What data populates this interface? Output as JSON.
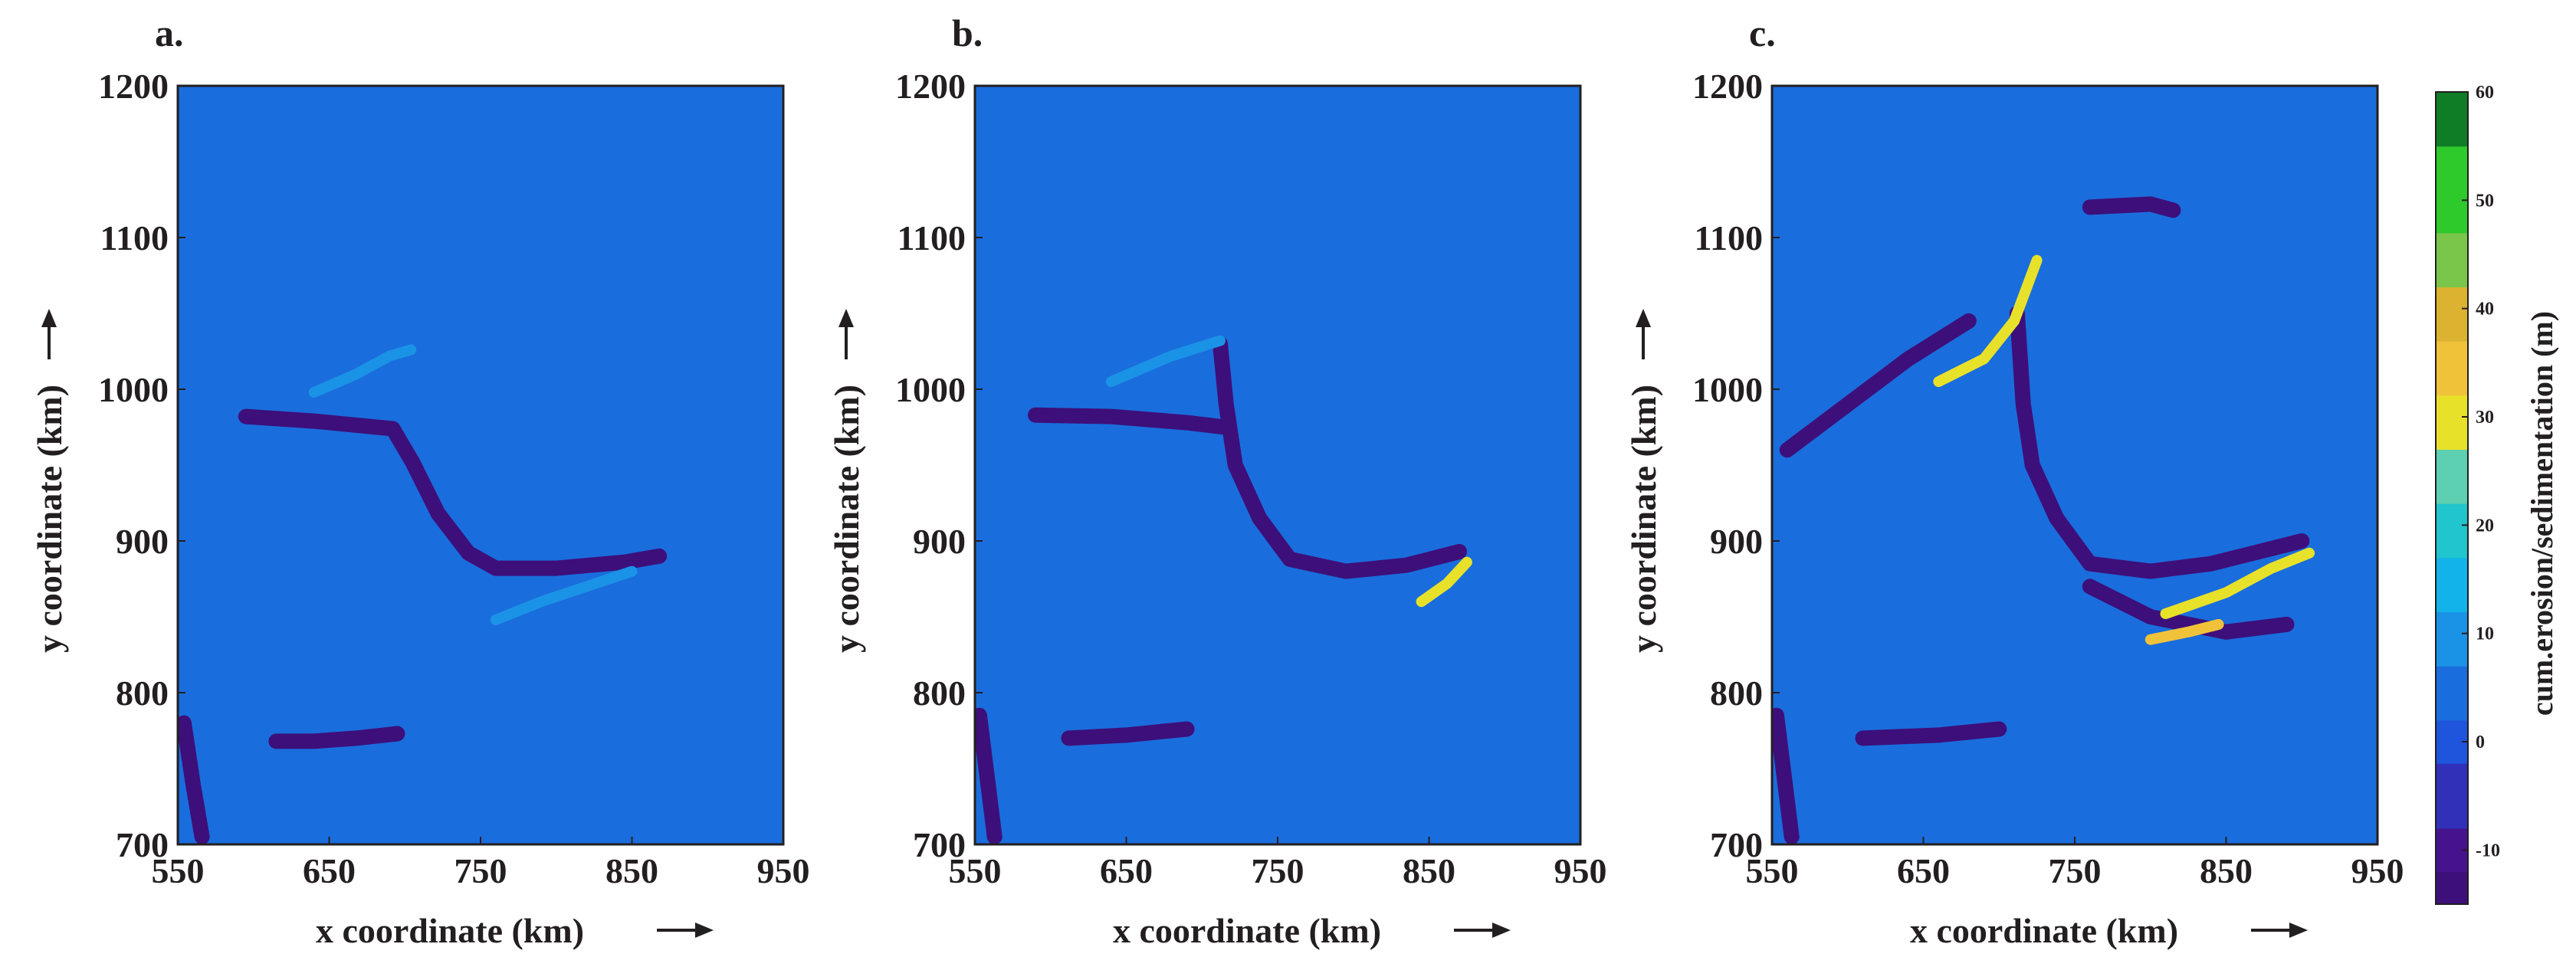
{
  "chart_data": [
    {
      "type": "heatmap",
      "panel_label": "a.",
      "xlabel": "x coordinate (km)",
      "ylabel": "y coordinate (km)",
      "xlim": [
        550,
        950
      ],
      "ylim": [
        700,
        1200
      ],
      "xticks": [
        "550",
        "650",
        "750",
        "850",
        "950"
      ],
      "yticks": [
        "700",
        "800",
        "900",
        "1000",
        "1100",
        "1200"
      ],
      "features": [
        {
          "kind": "erosion-channel",
          "value": -13,
          "points": [
            [
              595,
              982
            ],
            [
              640,
              979
            ],
            [
              692,
              974
            ],
            [
              705,
              952
            ],
            [
              722,
              918
            ],
            [
              742,
              892
            ],
            [
              760,
              882
            ],
            [
              800,
              882
            ],
            [
              845,
              886
            ],
            [
              868,
              890
            ]
          ]
        },
        {
          "kind": "erosion-channel",
          "value": -13,
          "points": [
            [
              615,
              768
            ],
            [
              640,
              768
            ],
            [
              668,
              770
            ],
            [
              695,
              773
            ]
          ]
        },
        {
          "kind": "erosion-channel",
          "value": -13,
          "points": [
            [
              554,
              780
            ],
            [
              560,
              740
            ],
            [
              566,
              705
            ]
          ]
        },
        {
          "kind": "deposition-bar",
          "value": 12,
          "points": [
            [
              640,
              998
            ],
            [
              668,
              1010
            ],
            [
              690,
              1022
            ],
            [
              704,
              1026
            ]
          ]
        },
        {
          "kind": "deposition-bar",
          "value": 8,
          "points": [
            [
              760,
              848
            ],
            [
              790,
              860
            ],
            [
              820,
              870
            ],
            [
              850,
              880
            ]
          ]
        }
      ]
    },
    {
      "type": "heatmap",
      "panel_label": "b.",
      "xlabel": "x coordinate (km)",
      "ylabel": "y coordinate (km)",
      "xlim": [
        550,
        950
      ],
      "ylim": [
        700,
        1200
      ],
      "xticks": [
        "550",
        "650",
        "750",
        "850",
        "950"
      ],
      "yticks": [
        "700",
        "800",
        "900",
        "1000",
        "1100",
        "1200"
      ],
      "features": [
        {
          "kind": "erosion-channel",
          "value": -13,
          "points": [
            [
              590,
              983
            ],
            [
              640,
              982
            ],
            [
              690,
              978
            ],
            [
              715,
              975
            ]
          ]
        },
        {
          "kind": "erosion-channel",
          "value": -13,
          "points": [
            [
              712,
              1030
            ],
            [
              716,
              990
            ],
            [
              722,
              950
            ],
            [
              738,
              915
            ],
            [
              758,
              888
            ],
            [
              795,
              880
            ],
            [
              835,
              884
            ],
            [
              870,
              893
            ]
          ]
        },
        {
          "kind": "erosion-channel",
          "value": -13,
          "points": [
            [
              612,
              770
            ],
            [
              650,
              772
            ],
            [
              690,
              776
            ]
          ]
        },
        {
          "kind": "erosion-channel",
          "value": -13,
          "points": [
            [
              553,
              785
            ],
            [
              558,
              745
            ],
            [
              563,
              705
            ]
          ]
        },
        {
          "kind": "deposition-bar",
          "value": 30,
          "points": [
            [
              845,
              860
            ],
            [
              862,
              872
            ],
            [
              875,
              886
            ]
          ]
        },
        {
          "kind": "deposition-bar",
          "value": 12,
          "points": [
            [
              640,
              1005
            ],
            [
              680,
              1022
            ],
            [
              712,
              1032
            ]
          ]
        }
      ]
    },
    {
      "type": "heatmap",
      "panel_label": "c.",
      "xlabel": "x coordinate (km)",
      "ylabel": "y coordinate (km)",
      "xlim": [
        550,
        950
      ],
      "ylim": [
        700,
        1200
      ],
      "xticks": [
        "550",
        "650",
        "750",
        "850",
        "950"
      ],
      "yticks": [
        "700",
        "800",
        "900",
        "1000",
        "1100",
        "1200"
      ],
      "features": [
        {
          "kind": "erosion-channel",
          "value": -13,
          "points": [
            [
              560,
              960
            ],
            [
              600,
              990
            ],
            [
              640,
              1020
            ],
            [
              680,
              1045
            ]
          ]
        },
        {
          "kind": "erosion-channel",
          "value": -13,
          "points": [
            [
              712,
              1050
            ],
            [
              716,
              990
            ],
            [
              722,
              950
            ],
            [
              738,
              915
            ],
            [
              760,
              885
            ],
            [
              800,
              880
            ],
            [
              840,
              885
            ],
            [
              900,
              900
            ]
          ]
        },
        {
          "kind": "erosion-channel",
          "value": -13,
          "points": [
            [
              760,
              870
            ],
            [
              800,
              850
            ],
            [
              850,
              840
            ],
            [
              890,
              845
            ]
          ]
        },
        {
          "kind": "erosion-channel",
          "value": -13,
          "points": [
            [
              760,
              1120
            ],
            [
              800,
              1122
            ],
            [
              815,
              1118
            ]
          ]
        },
        {
          "kind": "erosion-channel",
          "value": -13,
          "points": [
            [
              610,
              770
            ],
            [
              660,
              772
            ],
            [
              700,
              776
            ]
          ]
        },
        {
          "kind": "erosion-channel",
          "value": -13,
          "points": [
            [
              553,
              785
            ],
            [
              558,
              745
            ],
            [
              563,
              705
            ]
          ]
        },
        {
          "kind": "deposition-bar",
          "value": 30,
          "points": [
            [
              810,
              852
            ],
            [
              850,
              866
            ],
            [
              880,
              882
            ],
            [
              905,
              892
            ]
          ]
        },
        {
          "kind": "deposition-bar",
          "value": 33,
          "points": [
            [
              800,
              835
            ],
            [
              825,
              840
            ],
            [
              845,
              845
            ]
          ]
        },
        {
          "kind": "deposition-bar",
          "value": 30,
          "points": [
            [
              660,
              1005
            ],
            [
              690,
              1020
            ],
            [
              710,
              1045
            ],
            [
              725,
              1085
            ]
          ]
        }
      ]
    }
  ],
  "colorbar": {
    "title": "cum.erosion/sedimentation (m)",
    "range": [
      -15,
      60
    ],
    "ticks": [
      "-10",
      "0",
      "10",
      "20",
      "30",
      "40",
      "50",
      "60"
    ],
    "colormap": "parula",
    "background_value": 4,
    "colors": {
      "v_min": "#3d0f7a",
      "v_m10": "#47128d",
      "v_m5": "#3030b8",
      "v_0": "#1f54dc",
      "v_4": "#1a6ddc",
      "v_10": "#1a93e6",
      "v_15": "#12b2ea",
      "v_20": "#20c5cd",
      "v_25": "#5cd0b0",
      "v_30": "#e8e12a",
      "v_35": "#f0c23a",
      "v_40": "#dcb330",
      "v_45": "#7ac64a",
      "v_50": "#2ec92a",
      "v_60": "#0f7d26"
    }
  }
}
